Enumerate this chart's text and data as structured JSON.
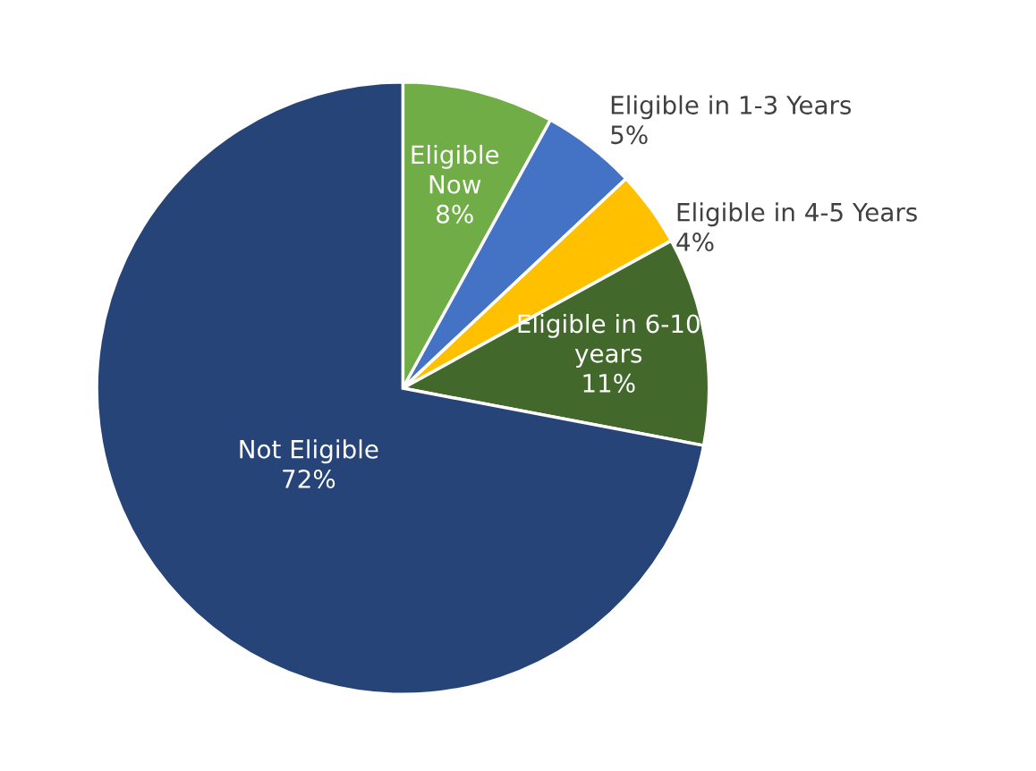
{
  "chart_data": {
    "type": "pie",
    "categories": [
      "Eligible\nNow",
      "Eligible in 1-3 Years",
      "Eligible in 4-5 Years",
      "Eligible in 6-10\nyears",
      "Not Eligible"
    ],
    "values": [
      8,
      5,
      4,
      11,
      72
    ],
    "value_labels": [
      "8%",
      "5%",
      "4%",
      "11%",
      "72%"
    ],
    "colors": [
      "#70ad47",
      "#4472c4",
      "#ffc000",
      "#43682b",
      "#264478"
    ]
  }
}
